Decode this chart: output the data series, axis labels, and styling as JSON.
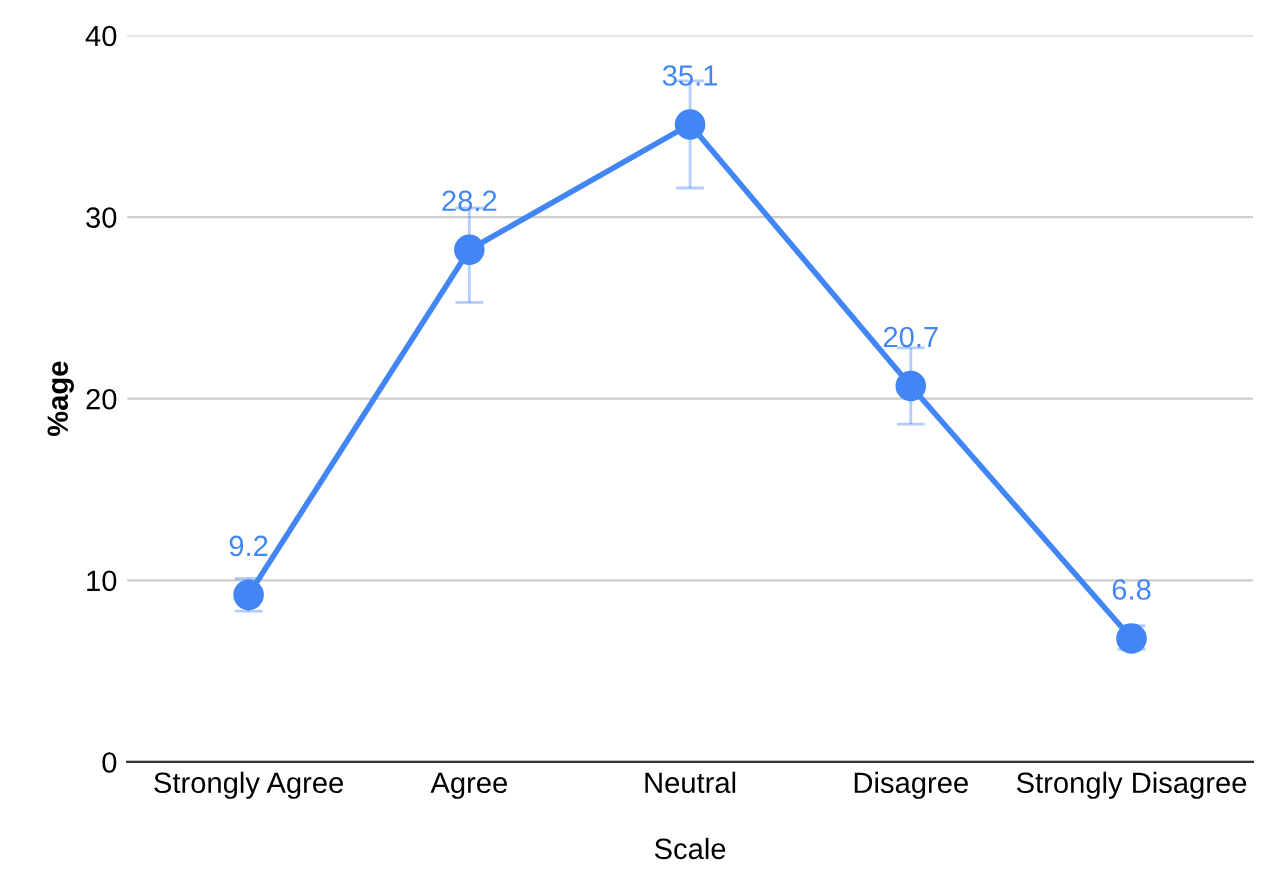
{
  "chart_data": {
    "type": "line",
    "xlabel": "Scale",
    "ylabel": "%age",
    "categories": [
      "Strongly Agree",
      "Agree",
      "Neutral",
      "Disagree",
      "Strongly Disagree"
    ],
    "series": [
      {
        "color": "#4285f4",
        "values": [
          9.2,
          28.2,
          35.1,
          20.7,
          6.8
        ],
        "errors": [
          [
            8.3,
            10.1
          ],
          [
            25.3,
            30.5
          ],
          [
            31.6,
            37.5
          ],
          [
            18.6,
            22.8
          ],
          [
            6.2,
            7.5
          ]
        ]
      }
    ],
    "ylim": [
      0,
      40
    ],
    "yticks": [
      0,
      10,
      20,
      30,
      40
    ],
    "grid": "y",
    "marker": "circle",
    "line_style": "solid",
    "data_labels": true,
    "legend": false
  }
}
